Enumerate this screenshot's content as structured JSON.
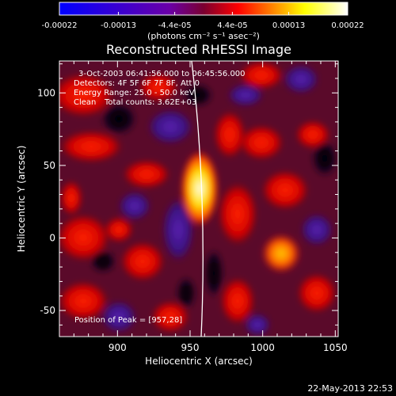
{
  "colorbar": {
    "tick_labels": [
      "-0.00022",
      "-0.00013",
      "-4.4e-05",
      "4.4e-05",
      "0.00013",
      "0.00022"
    ],
    "tick_values": [
      -0.00022,
      -0.00013,
      -4.4e-05,
      4.4e-05,
      0.00013,
      0.00022
    ],
    "range": [
      -0.00022,
      0.00022
    ],
    "unit_label": "(photons cm⁻² s⁻¹ asec⁻²)"
  },
  "info": {
    "time_range": "3-Oct-2003 06:41:56.000 to 06:45:56.000",
    "detectors": "Detectors: 4F 5F 6F 7F 8F, Att 0",
    "energy_range": "Energy Range: 25.0 - 50.0 keV",
    "algorithm": "Clean",
    "total_counts": "Total counts: 3.62E+03",
    "peak_position": "Position of Peak = [957,28]"
  },
  "footer": {
    "timestamp": "22-May-2013 22:53"
  },
  "chart_data": {
    "type": "heatmap",
    "title": "Reconstructed RHESSI Image",
    "xlabel": "Heliocentric X (arcsec)",
    "ylabel": "Heliocentric Y (arcsec)",
    "xlim": [
      860,
      1052
    ],
    "ylim": [
      -68,
      122
    ],
    "x_ticks": [
      900,
      950,
      1000,
      1050
    ],
    "y_ticks": [
      -50,
      0,
      50,
      100
    ],
    "x_tick_labels": [
      "900",
      "950",
      "1000",
      "1050"
    ],
    "y_tick_labels": [
      "-50",
      "0",
      "50",
      "100"
    ],
    "peak": [
      957,
      28
    ],
    "colormap": [
      "#0000ff",
      "#6a00a8",
      "#ff0000",
      "#ffff00",
      "#ffffff"
    ]
  }
}
